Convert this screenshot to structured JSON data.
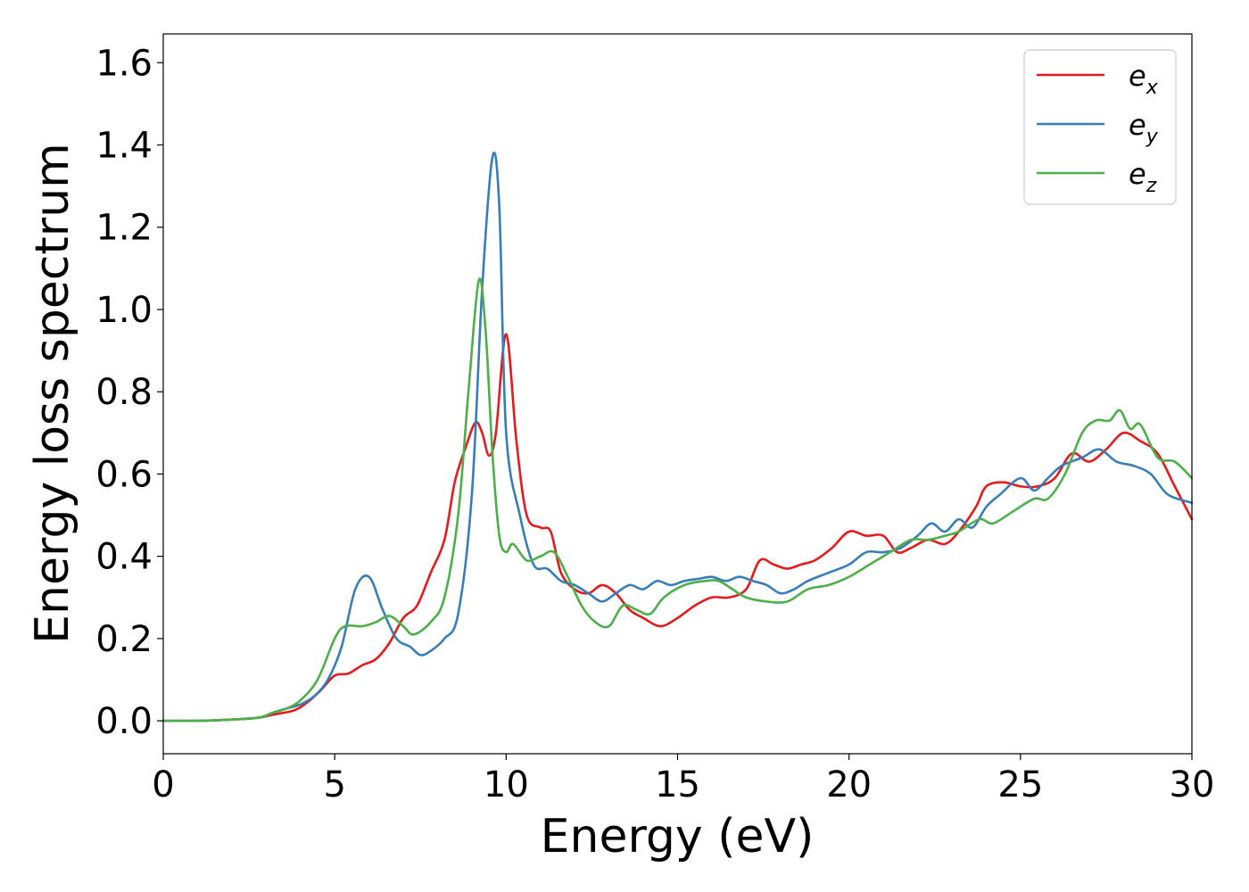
{
  "chart_data": {
    "type": "line",
    "title": "",
    "xlabel": "Energy (eV)",
    "ylabel": "Energy loss spectrum",
    "xlim": [
      0,
      30
    ],
    "ylim": [
      -0.08,
      1.67
    ],
    "xticks": [
      0,
      5,
      10,
      15,
      20,
      25,
      30
    ],
    "yticks": [
      "0.0",
      "0.2",
      "0.4",
      "0.6",
      "0.8",
      "1.0",
      "1.2",
      "1.4",
      "1.6"
    ],
    "ytick_values": [
      0.0,
      0.2,
      0.4,
      0.6,
      0.8,
      1.0,
      1.2,
      1.4,
      1.6
    ],
    "grid": false,
    "legend_position": "top-right",
    "series": [
      {
        "name": "e_x",
        "base": "e",
        "sub": "x",
        "color": "#e41a1c",
        "points": [
          [
            0,
            0
          ],
          [
            1,
            0
          ],
          [
            2,
            0.003
          ],
          [
            2.8,
            0.008
          ],
          [
            3.2,
            0.015
          ],
          [
            3.8,
            0.025
          ],
          [
            4.2,
            0.045
          ],
          [
            4.6,
            0.075
          ],
          [
            5,
            0.11
          ],
          [
            5.4,
            0.115
          ],
          [
            5.8,
            0.135
          ],
          [
            6.2,
            0.15
          ],
          [
            6.6,
            0.19
          ],
          [
            7,
            0.25
          ],
          [
            7.4,
            0.28
          ],
          [
            7.8,
            0.36
          ],
          [
            8.2,
            0.44
          ],
          [
            8.5,
            0.58
          ],
          [
            8.8,
            0.66
          ],
          [
            9.1,
            0.725
          ],
          [
            9.3,
            0.7
          ],
          [
            9.5,
            0.645
          ],
          [
            9.7,
            0.7
          ],
          [
            10,
            0.94
          ],
          [
            10.3,
            0.68
          ],
          [
            10.6,
            0.5
          ],
          [
            11,
            0.47
          ],
          [
            11.3,
            0.46
          ],
          [
            11.6,
            0.36
          ],
          [
            12,
            0.32
          ],
          [
            12.4,
            0.31
          ],
          [
            12.8,
            0.33
          ],
          [
            13.2,
            0.31
          ],
          [
            13.6,
            0.27
          ],
          [
            14,
            0.25
          ],
          [
            14.5,
            0.23
          ],
          [
            15,
            0.25
          ],
          [
            15.5,
            0.28
          ],
          [
            16,
            0.3
          ],
          [
            16.5,
            0.3
          ],
          [
            17,
            0.32
          ],
          [
            17.4,
            0.39
          ],
          [
            17.8,
            0.38
          ],
          [
            18.2,
            0.37
          ],
          [
            18.6,
            0.38
          ],
          [
            19,
            0.39
          ],
          [
            19.5,
            0.42
          ],
          [
            20,
            0.46
          ],
          [
            20.5,
            0.45
          ],
          [
            21,
            0.45
          ],
          [
            21.4,
            0.41
          ],
          [
            21.8,
            0.42
          ],
          [
            22.3,
            0.44
          ],
          [
            22.8,
            0.43
          ],
          [
            23.2,
            0.46
          ],
          [
            23.7,
            0.52
          ],
          [
            24,
            0.57
          ],
          [
            24.5,
            0.58
          ],
          [
            25,
            0.57
          ],
          [
            25.5,
            0.57
          ],
          [
            26,
            0.59
          ],
          [
            26.5,
            0.65
          ],
          [
            27,
            0.63
          ],
          [
            27.5,
            0.66
          ],
          [
            28,
            0.7
          ],
          [
            28.5,
            0.68
          ],
          [
            29,
            0.65
          ],
          [
            29.5,
            0.57
          ],
          [
            30,
            0.49
          ]
        ]
      },
      {
        "name": "e_y",
        "base": "e",
        "sub": "y",
        "color": "#377eb8",
        "points": [
          [
            0,
            0
          ],
          [
            1,
            0
          ],
          [
            2,
            0.003
          ],
          [
            2.8,
            0.008
          ],
          [
            3.2,
            0.02
          ],
          [
            3.6,
            0.03
          ],
          [
            4,
            0.04
          ],
          [
            4.4,
            0.06
          ],
          [
            4.8,
            0.1
          ],
          [
            5.2,
            0.18
          ],
          [
            5.6,
            0.32
          ],
          [
            6,
            0.35
          ],
          [
            6.4,
            0.27
          ],
          [
            6.8,
            0.2
          ],
          [
            7.2,
            0.18
          ],
          [
            7.5,
            0.16
          ],
          [
            7.8,
            0.17
          ],
          [
            8.2,
            0.2
          ],
          [
            8.6,
            0.26
          ],
          [
            9,
            0.55
          ],
          [
            9.3,
            1.05
          ],
          [
            9.6,
            1.37
          ],
          [
            9.8,
            1.25
          ],
          [
            10,
            0.7
          ],
          [
            10.4,
            0.5
          ],
          [
            10.8,
            0.38
          ],
          [
            11.2,
            0.37
          ],
          [
            11.6,
            0.34
          ],
          [
            12,
            0.33
          ],
          [
            12.4,
            0.31
          ],
          [
            12.8,
            0.29
          ],
          [
            13.2,
            0.31
          ],
          [
            13.6,
            0.33
          ],
          [
            14,
            0.32
          ],
          [
            14.4,
            0.34
          ],
          [
            14.8,
            0.33
          ],
          [
            15.2,
            0.34
          ],
          [
            15.6,
            0.345
          ],
          [
            16,
            0.35
          ],
          [
            16.4,
            0.34
          ],
          [
            16.8,
            0.35
          ],
          [
            17.2,
            0.34
          ],
          [
            17.6,
            0.33
          ],
          [
            18,
            0.31
          ],
          [
            18.4,
            0.32
          ],
          [
            18.8,
            0.34
          ],
          [
            19.4,
            0.36
          ],
          [
            20,
            0.38
          ],
          [
            20.5,
            0.41
          ],
          [
            21,
            0.41
          ],
          [
            21.5,
            0.42
          ],
          [
            22,
            0.45
          ],
          [
            22.4,
            0.48
          ],
          [
            22.8,
            0.46
          ],
          [
            23.2,
            0.49
          ],
          [
            23.6,
            0.47
          ],
          [
            24,
            0.52
          ],
          [
            24.4,
            0.55
          ],
          [
            25,
            0.59
          ],
          [
            25.4,
            0.56
          ],
          [
            25.8,
            0.59
          ],
          [
            26.2,
            0.62
          ],
          [
            26.8,
            0.64
          ],
          [
            27.3,
            0.66
          ],
          [
            27.8,
            0.63
          ],
          [
            28.3,
            0.62
          ],
          [
            28.8,
            0.6
          ],
          [
            29.3,
            0.55
          ],
          [
            30,
            0.53
          ]
        ]
      },
      {
        "name": "e_z",
        "base": "e",
        "sub": "z",
        "color": "#4daf4a",
        "points": [
          [
            0,
            0
          ],
          [
            1,
            0
          ],
          [
            2,
            0.003
          ],
          [
            2.8,
            0.008
          ],
          [
            3.2,
            0.02
          ],
          [
            3.6,
            0.03
          ],
          [
            4,
            0.05
          ],
          [
            4.5,
            0.1
          ],
          [
            5,
            0.2
          ],
          [
            5.3,
            0.23
          ],
          [
            5.8,
            0.23
          ],
          [
            6.2,
            0.24
          ],
          [
            6.6,
            0.255
          ],
          [
            7,
            0.23
          ],
          [
            7.3,
            0.21
          ],
          [
            7.8,
            0.24
          ],
          [
            8.2,
            0.3
          ],
          [
            8.6,
            0.5
          ],
          [
            8.9,
            0.8
          ],
          [
            9.2,
            1.07
          ],
          [
            9.4,
            0.95
          ],
          [
            9.6,
            0.65
          ],
          [
            9.8,
            0.45
          ],
          [
            10,
            0.41
          ],
          [
            10.2,
            0.43
          ],
          [
            10.6,
            0.39
          ],
          [
            11,
            0.4
          ],
          [
            11.4,
            0.41
          ],
          [
            11.8,
            0.35
          ],
          [
            12.2,
            0.28
          ],
          [
            12.6,
            0.24
          ],
          [
            13,
            0.23
          ],
          [
            13.4,
            0.28
          ],
          [
            13.8,
            0.27
          ],
          [
            14.2,
            0.26
          ],
          [
            14.6,
            0.3
          ],
          [
            15.2,
            0.33
          ],
          [
            15.8,
            0.34
          ],
          [
            16.2,
            0.34
          ],
          [
            16.6,
            0.32
          ],
          [
            17,
            0.3
          ],
          [
            17.6,
            0.29
          ],
          [
            18.2,
            0.29
          ],
          [
            18.8,
            0.32
          ],
          [
            19.4,
            0.33
          ],
          [
            20,
            0.35
          ],
          [
            20.6,
            0.38
          ],
          [
            21.2,
            0.41
          ],
          [
            21.8,
            0.44
          ],
          [
            22.3,
            0.44
          ],
          [
            22.8,
            0.45
          ],
          [
            23.2,
            0.46
          ],
          [
            23.8,
            0.49
          ],
          [
            24.2,
            0.48
          ],
          [
            24.8,
            0.51
          ],
          [
            25.4,
            0.54
          ],
          [
            25.8,
            0.54
          ],
          [
            26.3,
            0.6
          ],
          [
            26.8,
            0.7
          ],
          [
            27.2,
            0.73
          ],
          [
            27.6,
            0.73
          ],
          [
            27.9,
            0.755
          ],
          [
            28.2,
            0.71
          ],
          [
            28.5,
            0.72
          ],
          [
            29,
            0.64
          ],
          [
            29.5,
            0.63
          ],
          [
            30,
            0.59
          ]
        ]
      }
    ]
  }
}
